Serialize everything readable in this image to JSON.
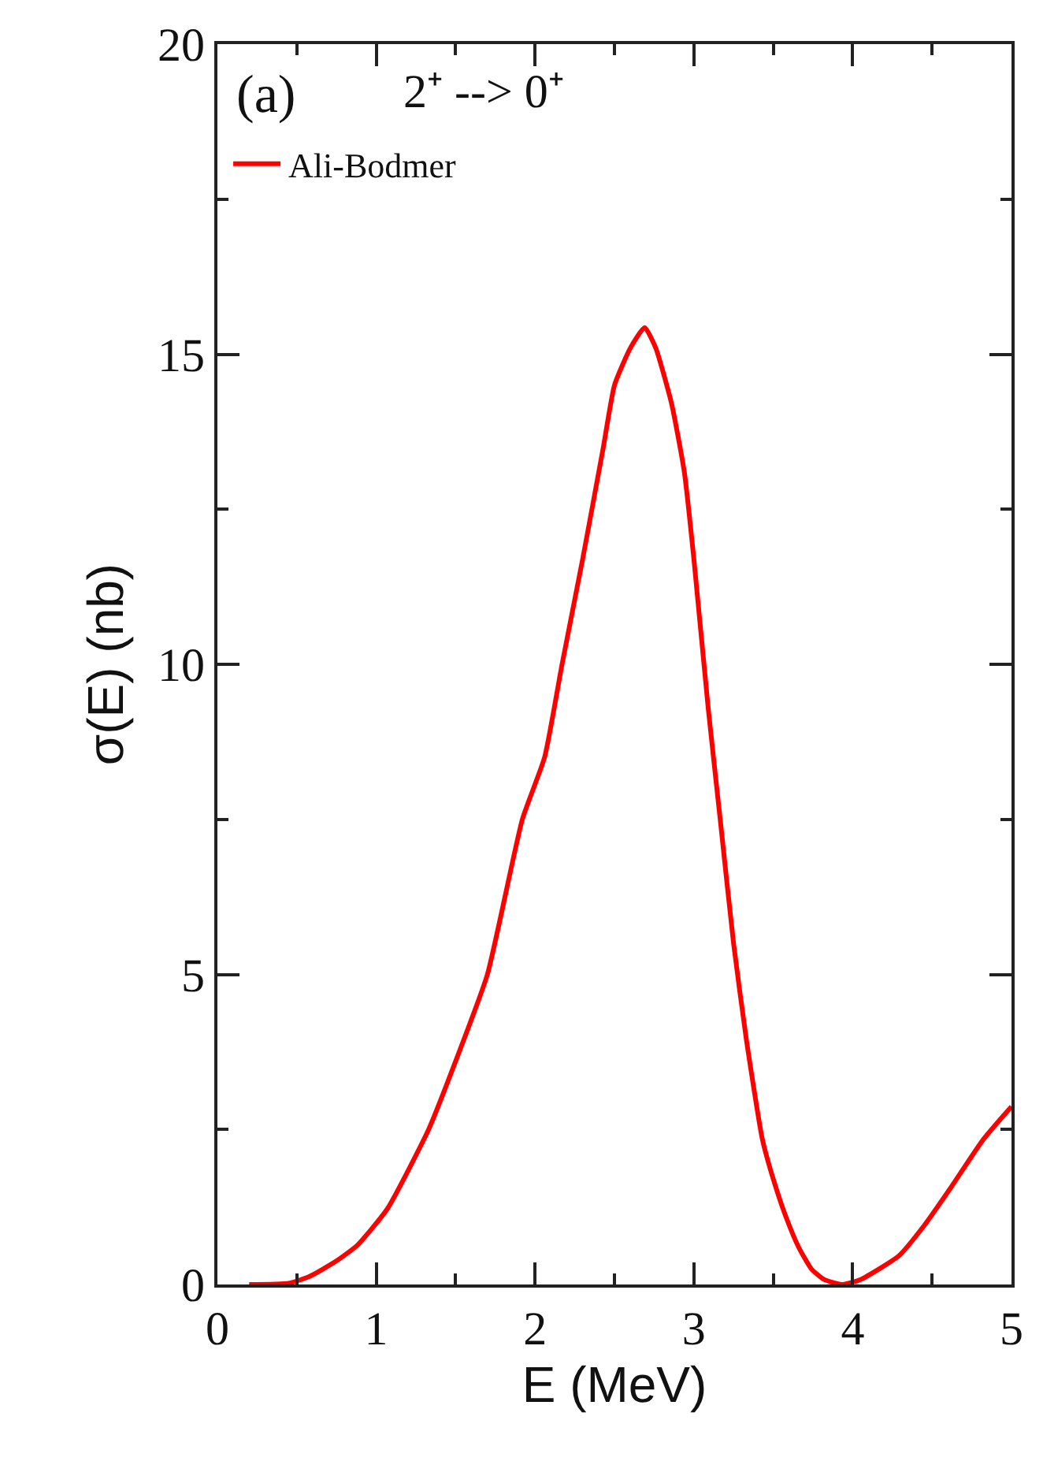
{
  "chart_data": {
    "type": "line",
    "xlabel": "E (MeV)",
    "ylabel": "σ(E) (nb)",
    "annotations": [
      "(a)",
      "2⁺ --> 0⁺"
    ],
    "x": [
      0.2,
      0.45,
      0.58,
      0.75,
      0.88,
      1.07,
      1.33,
      1.5,
      1.7,
      1.92,
      2.06,
      2.17,
      2.3,
      2.43,
      2.5,
      2.6,
      2.69,
      2.76,
      2.86,
      2.94,
      3.0,
      3.09,
      3.17,
      3.25,
      3.33,
      3.43,
      3.5,
      3.58,
      3.66,
      3.74,
      3.82,
      3.93,
      4.05,
      4.29,
      4.45,
      4.62,
      4.82,
      5.0
    ],
    "series": [
      {
        "name": "Ali-Bodmer",
        "color": "#ff0000",
        "values": [
          0,
          0.02,
          0.13,
          0.38,
          0.63,
          1.22,
          2.5,
          3.6,
          5.0,
          7.5,
          8.5,
          10.0,
          11.7,
          13.5,
          14.5,
          15.1,
          15.43,
          15.1,
          14.2,
          13.1,
          11.7,
          9.3,
          7.4,
          5.5,
          3.96,
          2.36,
          1.7,
          1.09,
          0.6,
          0.25,
          0.08,
          0,
          0.08,
          0.46,
          0.95,
          1.57,
          2.33,
          2.87
        ]
      }
    ],
    "xlim": [
      0,
      5
    ],
    "ylim": [
      0,
      20
    ],
    "xticks": [
      0,
      {
        "value": 0.5,
        "label": null
      },
      1,
      {
        "value": 1.5,
        "label": null
      },
      2,
      {
        "value": 2.5,
        "label": null
      },
      3,
      {
        "value": 3.5,
        "label": null
      },
      4,
      {
        "value": 4.5,
        "label": null
      },
      5
    ],
    "yticks": [
      0,
      {
        "value": 2.5,
        "label": null
      },
      5,
      {
        "value": 7.5,
        "label": null
      },
      10,
      {
        "value": 12.5,
        "label": null
      },
      15,
      {
        "value": 17.5,
        "label": null
      },
      20
    ],
    "legend": "top left",
    "marker": "none",
    "line_style": "solid"
  }
}
